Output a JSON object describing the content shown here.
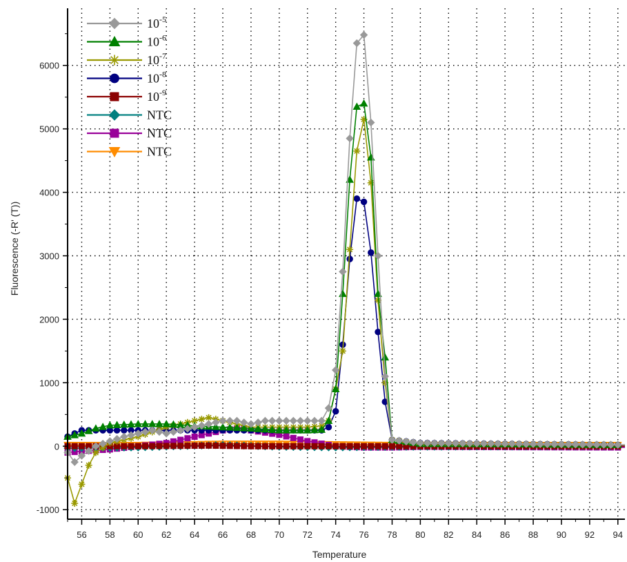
{
  "chart_data": {
    "type": "line",
    "title": "",
    "xlabel": "Temperature",
    "ylabel": "Fluorescence (-R' (T))",
    "xlim": [
      55,
      94.5
    ],
    "ylim": [
      -1150,
      6900
    ],
    "x_ticks": [
      56,
      58,
      60,
      62,
      64,
      66,
      68,
      70,
      72,
      74,
      76,
      78,
      80,
      82,
      84,
      86,
      88,
      90,
      92,
      94
    ],
    "y_ticks": [
      -1000,
      0,
      1000,
      2000,
      3000,
      4000,
      5000,
      6000
    ],
    "grid": true,
    "legend_position": "top-left",
    "series": [
      {
        "name": "10",
        "superscript": "-5",
        "color": "#999999",
        "marker": "diamond",
        "x": [
          55,
          55.5,
          56,
          57,
          58,
          59,
          60,
          61,
          62,
          63,
          64,
          65,
          66,
          67,
          68,
          69,
          70,
          71,
          72,
          73,
          73.5,
          74,
          74.5,
          75,
          75.5,
          76,
          76.5,
          77,
          77.5,
          78,
          80,
          94.5
        ],
        "y": [
          -100,
          -250,
          -150,
          0,
          80,
          150,
          200,
          250,
          200,
          250,
          300,
          350,
          400,
          400,
          350,
          400,
          400,
          400,
          400,
          400,
          600,
          1200,
          2750,
          4850,
          6350,
          6480,
          5100,
          3000,
          1100,
          100,
          50,
          20
        ]
      },
      {
        "name": "10",
        "superscript": "-6",
        "color": "#008000",
        "marker": "triangle",
        "x": [
          55,
          56,
          57,
          58,
          59,
          60,
          62,
          64,
          66,
          68,
          70,
          72,
          73,
          73.5,
          74,
          74.5,
          75,
          75.5,
          76,
          76.5,
          77,
          77.5,
          78,
          80,
          94.5
        ],
        "y": [
          150,
          200,
          280,
          330,
          340,
          350,
          350,
          320,
          300,
          280,
          250,
          250,
          260,
          400,
          900,
          2400,
          4200,
          5350,
          5400,
          4550,
          2400,
          1400,
          100,
          40,
          20
        ]
      },
      {
        "name": "10",
        "superscript": "-7",
        "color": "#999900",
        "marker": "star",
        "x": [
          55,
          55.5,
          56,
          56.5,
          57,
          58,
          60,
          62,
          63,
          64,
          65,
          66,
          67,
          68,
          70,
          72,
          73,
          73.5,
          74,
          74.5,
          75,
          75.5,
          76,
          76.5,
          77,
          77.5,
          78,
          80,
          94.5
        ],
        "y": [
          -500,
          -900,
          -600,
          -300,
          -100,
          50,
          150,
          300,
          350,
          400,
          450,
          400,
          350,
          300,
          300,
          300,
          320,
          400,
          900,
          1500,
          3100,
          4650,
          5150,
          4150,
          2300,
          1000,
          100,
          40,
          20
        ]
      },
      {
        "name": "10",
        "superscript": "-8",
        "color": "#000080",
        "marker": "circle",
        "x": [
          55,
          56,
          57,
          58,
          60,
          62,
          64,
          66,
          68,
          70,
          72,
          73,
          73.5,
          74,
          74.5,
          75,
          75.5,
          76,
          76.5,
          77,
          77.5,
          78,
          80,
          94.5
        ],
        "y": [
          150,
          250,
          250,
          250,
          250,
          250,
          250,
          250,
          250,
          250,
          250,
          250,
          300,
          550,
          1600,
          2950,
          3900,
          3850,
          3050,
          1800,
          700,
          100,
          50,
          20
        ]
      },
      {
        "name": "10",
        "superscript": "-9",
        "color": "#8b0000",
        "marker": "square",
        "x": [
          55,
          60,
          65,
          68,
          70,
          74,
          78,
          94.5
        ],
        "y": [
          0,
          0,
          10,
          0,
          0,
          0,
          0,
          0
        ]
      },
      {
        "name": "NTC",
        "color": "#008080",
        "marker": "diamond",
        "x": [
          55,
          60,
          66,
          70,
          74,
          78,
          94.5
        ],
        "y": [
          -30,
          -20,
          20,
          -10,
          -20,
          -10,
          0
        ]
      },
      {
        "name": "NTC",
        "color": "#990099",
        "marker": "square",
        "x": [
          55,
          56,
          58,
          60,
          62,
          64,
          65,
          66,
          67,
          68,
          70,
          72,
          74,
          76,
          78,
          80,
          94.5
        ],
        "y": [
          -100,
          -80,
          -50,
          0,
          50,
          150,
          200,
          250,
          280,
          250,
          180,
          80,
          0,
          -20,
          -20,
          -10,
          -20
        ]
      },
      {
        "name": "NTC",
        "color": "#ff8c00",
        "marker": "triangle-down",
        "x": [
          55,
          60,
          66,
          70,
          74,
          78,
          94.5
        ],
        "y": [
          20,
          20,
          40,
          40,
          30,
          20,
          20
        ]
      }
    ]
  }
}
